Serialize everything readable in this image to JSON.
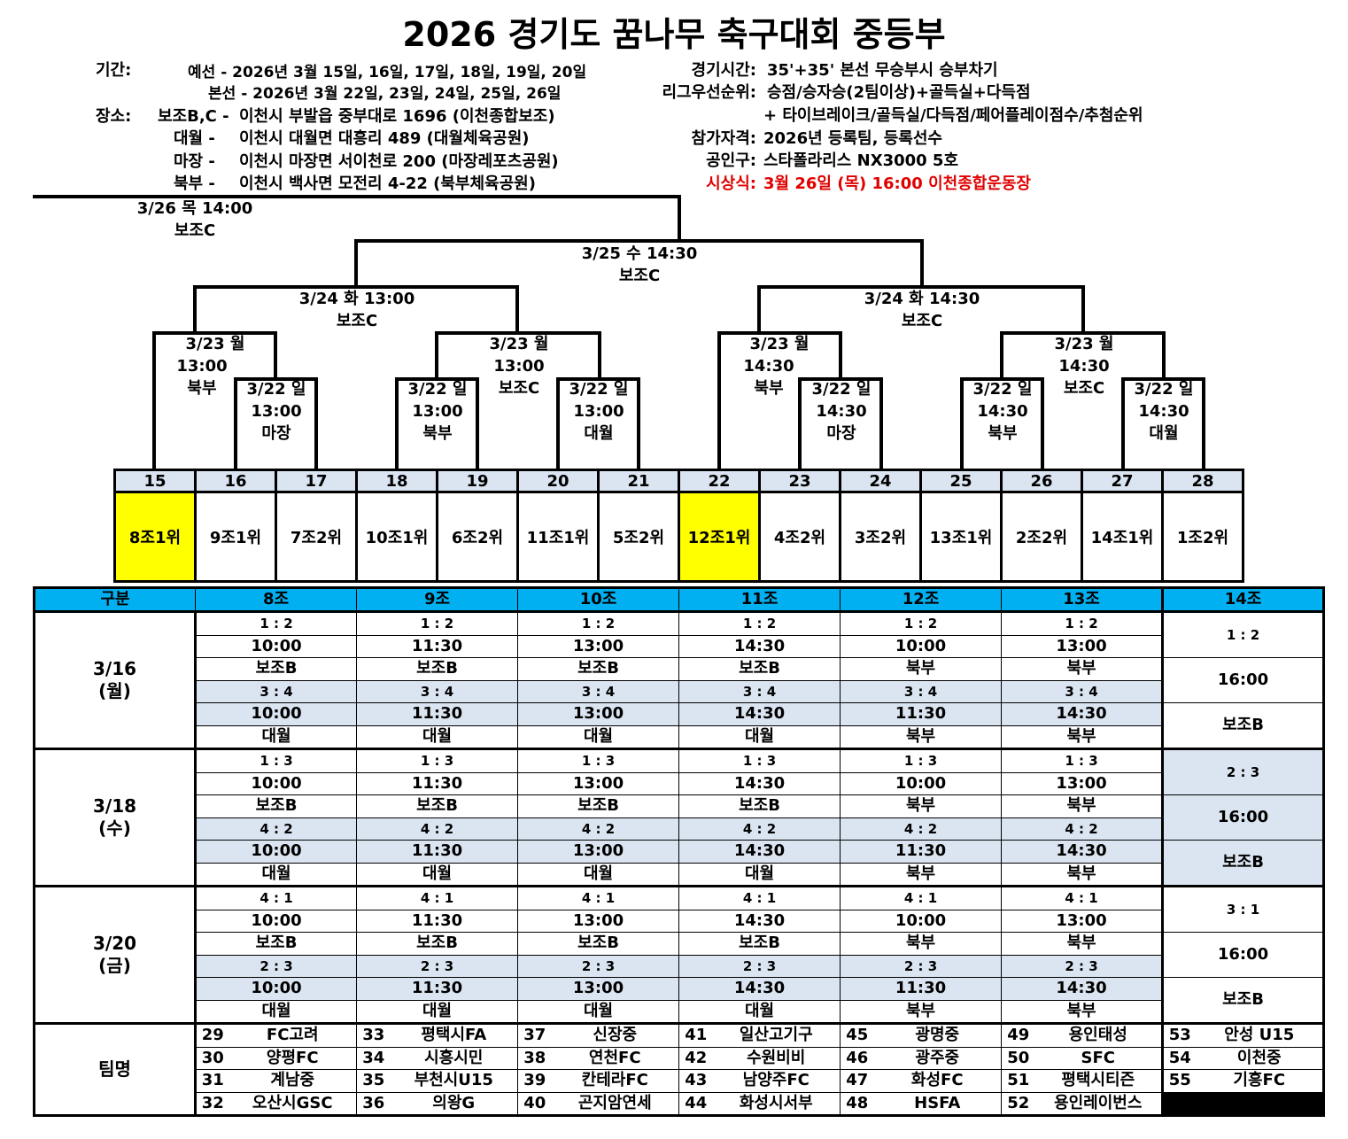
{
  "title": "2026 경기도 꿈나무 축구대회 중등부",
  "info_left": {
    "period_label": "기간:",
    "period_prelim": "예선 - 2026년 3월 15일, 16일, 17일, 18일, 19일, 20일",
    "period_main": "본선 - 2026년 3월 22일, 23일, 24일, 25일, 26일",
    "venue_label": "장소:",
    "venues": [
      {
        "name": "보조B,C -",
        "addr": "이천시 부발읍 중부대로 1696 (이천종합보조)"
      },
      {
        "name": "대월 -",
        "addr": "이천시 대월면 대흥리 489 (대월체육공원)"
      },
      {
        "name": "마장 -",
        "addr": "이천시 마장면 서이천로 200 (마장레포츠공원)"
      },
      {
        "name": "북부 -",
        "addr": "이천시 백사면 모전리 4-22 (북부체육공원)"
      }
    ]
  },
  "info_right": {
    "time_label": "경기시간:",
    "time_value": "35'+35' 본선 무승부시 승부차기",
    "rank_label": "리그우선순위:",
    "rank_value": "승점/승자승(2팀이상)+골득실+다득점",
    "rank_value2": "+ 타이브레이크/골득실/다득점/페어플레이점수/추첨순위",
    "elig_label": "참가자격:",
    "elig_value": "2026년 등록팀, 등록선수",
    "ball_label": "공인구:",
    "ball_value": "스타폴라리스 NX3000 5호",
    "award_label": "시상식:",
    "award_value": "3월 26일 (목) 16:00 이천종합운동장",
    "award_color": "#e00000"
  },
  "bracket": {
    "final": [
      "3/26 목 14:00",
      "보조C"
    ],
    "semi": [
      "3/25 수 14:30",
      "보조C"
    ],
    "qf_left": [
      "3/24 화 13:00",
      "보조C"
    ],
    "qf_right": [
      "3/24 화 14:30",
      "보조C"
    ],
    "r16": [
      [
        "3/23 월",
        "13:00",
        "북부"
      ],
      [
        "3/23 월",
        "13:00",
        "보조C"
      ],
      [
        "3/23 월",
        "14:30",
        "북부"
      ],
      [
        "3/23 월",
        "14:30",
        "보조C"
      ]
    ],
    "r32": [
      [
        "3/22 일",
        "13:00",
        "마장"
      ],
      [
        "3/22 일",
        "13:00",
        "북부"
      ],
      [
        "3/22 일",
        "13:00",
        "대월"
      ],
      [
        "3/22 일",
        "14:30",
        "마장"
      ],
      [
        "3/22 일",
        "14:30",
        "북부"
      ],
      [
        "3/22 일",
        "14:30",
        "대월"
      ]
    ]
  },
  "seeds": {
    "numbers": [
      "15",
      "16",
      "17",
      "18",
      "19",
      "20",
      "21",
      "22",
      "23",
      "24",
      "25",
      "26",
      "27",
      "28"
    ],
    "teams": [
      "8조1위",
      "9조1위",
      "7조2위",
      "10조1위",
      "6조2위",
      "11조1위",
      "5조2위",
      "12조1위",
      "4조2위",
      "3조2위",
      "13조1위",
      "2조2위",
      "14조1위",
      "1조2위"
    ],
    "highlight_color": "#ffff00"
  },
  "grid": {
    "header_label": "구분",
    "groups": [
      "8조",
      "9조",
      "10조",
      "11조",
      "12조",
      "13조",
      "14조"
    ],
    "header_color": "#00b0f0",
    "days": [
      {
        "date": "3/16",
        "weekday": "(월)",
        "rows": [
          [
            "1 : 2",
            "1 : 2",
            "1 : 2",
            "1 : 2",
            "1 : 2",
            "1 : 2"
          ],
          [
            "10:00",
            "11:30",
            "13:00",
            "14:30",
            "10:00",
            "13:00"
          ],
          [
            "보조B",
            "보조B",
            "보조B",
            "보조B",
            "북부",
            "북부"
          ],
          [
            "3 : 4",
            "3 : 4",
            "3 : 4",
            "3 : 4",
            "3 : 4",
            "3 : 4"
          ],
          [
            "10:00",
            "11:30",
            "13:00",
            "14:30",
            "11:30",
            "14:30"
          ],
          [
            "대월",
            "대월",
            "대월",
            "대월",
            "북부",
            "북부"
          ]
        ],
        "g14": [
          "1 : 2",
          "16:00",
          "보조B"
        ]
      },
      {
        "date": "3/18",
        "weekday": "(수)",
        "rows": [
          [
            "1 : 3",
            "1 : 3",
            "1 : 3",
            "1 : 3",
            "1 : 3",
            "1 : 3"
          ],
          [
            "10:00",
            "11:30",
            "13:00",
            "14:30",
            "10:00",
            "13:00"
          ],
          [
            "보조B",
            "보조B",
            "보조B",
            "보조B",
            "북부",
            "북부"
          ],
          [
            "4 : 2",
            "4 : 2",
            "4 : 2",
            "4 : 2",
            "4 : 2",
            "4 : 2"
          ],
          [
            "10:00",
            "11:30",
            "13:00",
            "14:30",
            "11:30",
            "14:30"
          ],
          [
            "대월",
            "대월",
            "대월",
            "대월",
            "북부",
            "북부"
          ]
        ],
        "g14": [
          "2 : 3",
          "16:00",
          "보조B"
        ]
      },
      {
        "date": "3/20",
        "weekday": "(금)",
        "rows": [
          [
            "4 : 1",
            "4 : 1",
            "4 : 1",
            "4 : 1",
            "4 : 1",
            "4 : 1"
          ],
          [
            "10:00",
            "11:30",
            "13:00",
            "14:30",
            "10:00",
            "13:00"
          ],
          [
            "보조B",
            "보조B",
            "보조B",
            "보조B",
            "북부",
            "북부"
          ],
          [
            "2 : 3",
            "2 : 3",
            "2 : 3",
            "2 : 3",
            "2 : 3",
            "2 : 3"
          ],
          [
            "10:00",
            "11:30",
            "13:00",
            "14:30",
            "11:30",
            "14:30"
          ],
          [
            "대월",
            "대월",
            "대월",
            "대월",
            "북부",
            "북부"
          ]
        ],
        "g14": [
          "3 : 1",
          "16:00",
          "보조B"
        ]
      }
    ],
    "team_label": "팀명",
    "teams": [
      [
        [
          "29",
          "FC고려"
        ],
        [
          "33",
          "평택시FA"
        ],
        [
          "37",
          "신장중"
        ],
        [
          "41",
          "일산고기구"
        ],
        [
          "45",
          "광명중"
        ],
        [
          "49",
          "용인태성"
        ],
        [
          "53",
          "안성 U15"
        ]
      ],
      [
        [
          "30",
          "양평FC"
        ],
        [
          "34",
          "시흥시민"
        ],
        [
          "38",
          "연천FC"
        ],
        [
          "42",
          "수원비비"
        ],
        [
          "46",
          "광주중"
        ],
        [
          "50",
          "SFC"
        ],
        [
          "54",
          "이천중"
        ]
      ],
      [
        [
          "31",
          "계남중"
        ],
        [
          "35",
          "부천시U15"
        ],
        [
          "39",
          "칸테라FC"
        ],
        [
          "43",
          "남양주FC"
        ],
        [
          "47",
          "화성FC"
        ],
        [
          "51",
          "평택시티즌"
        ],
        [
          "55",
          "기흥FC"
        ]
      ],
      [
        [
          "32",
          "오산시GSC"
        ],
        [
          "36",
          "의왕G"
        ],
        [
          "40",
          "곤지암연세"
        ],
        [
          "44",
          "화성시서부"
        ],
        [
          "48",
          "HSFA"
        ],
        [
          "52",
          "용인레이번스"
        ]
      ]
    ],
    "shade_color": "#dbe5f1"
  }
}
